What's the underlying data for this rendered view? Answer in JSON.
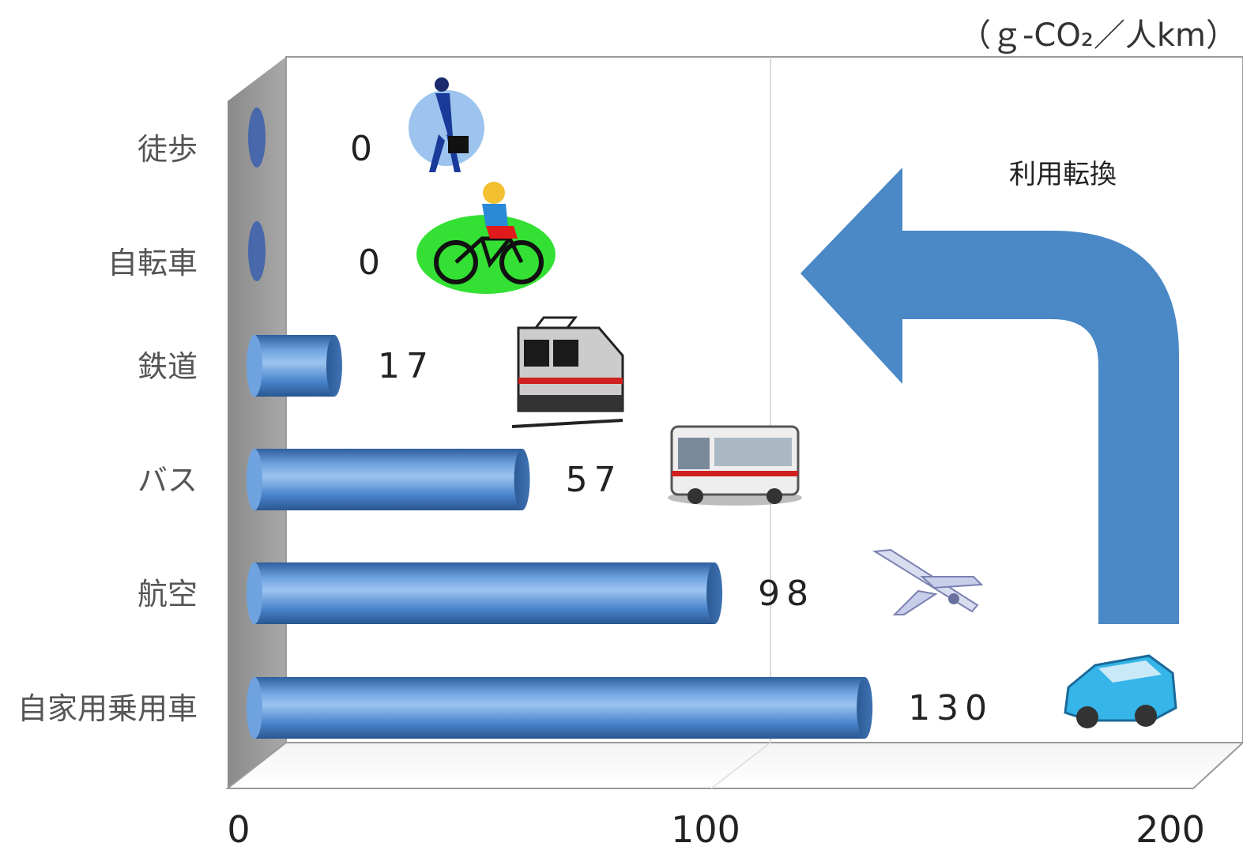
{
  "chart_data": {
    "type": "bar",
    "orientation": "horizontal",
    "unit": "（ｇ-CO₂／人km）",
    "categories": [
      "徒歩",
      "自転車",
      "鉄道",
      "バス",
      "航空",
      "自家用乗用車"
    ],
    "values": [
      0,
      0,
      17,
      57,
      98,
      130
    ],
    "data_labels": [
      "0",
      "0",
      "17",
      "57",
      "98",
      "130"
    ],
    "xlim": [
      0,
      200
    ],
    "x_ticks": [
      "0",
      "100",
      "200"
    ],
    "gridlines": true,
    "style": "3d-cylinder",
    "bar_color": "#4a84cc",
    "pictograms": [
      "walking-person-icon",
      "bicycle-icon",
      "train-icon",
      "bus-icon",
      "airplane-icon",
      "car-icon"
    ],
    "annotation": {
      "text": "利用転換",
      "shape": "u-turn-arrow",
      "color": "#4a88c6"
    }
  }
}
